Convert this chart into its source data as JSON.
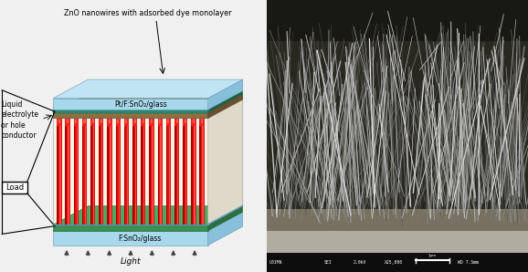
{
  "fig_width": 5.78,
  "fig_height": 2.98,
  "dpi": 100,
  "bg_color": "#f0f0f0",
  "left_panel": {
    "title": "ZnO nanowires with adsorbed dye monolayer",
    "top_label": "Pt/F:SnO₂/glass",
    "bottom_label": "F:SnO₂/glass",
    "left_labels": [
      "Liquid",
      "electrolyte",
      "or hole",
      "conductor"
    ],
    "load_label": "Load",
    "light_label": "Light",
    "colors": {
      "glass_blue": "#a8d8ec",
      "glass_blue_top": "#c0e4f4",
      "glass_blue_dark": "#88c0dc",
      "green_layer": "#3a9050",
      "green_top": "#4aaa60",
      "green_dark": "#2a7040",
      "nanowire_red": "#dd1111",
      "nanowire_highlight": "#ff4444",
      "nanowire_shadow": "#aa0000",
      "nw_bg": "#f8f2e0",
      "nw_side": "#e0d8c8",
      "nw_top_face": "#f0e8d8",
      "mid_brown": "#8b7040",
      "mid_brown_top": "#a08050",
      "liquid_blue": "#b0d8ec",
      "outer_glass_front": "#88c4dc",
      "outer_glass_top": "#a0d4e8",
      "teal_strip": "#2a8870"
    }
  },
  "right_panel": {
    "bottom_text_left": "U01MN",
    "bottom_text_mid": "SEI",
    "bottom_text_kv": "2.0kV",
    "bottom_text_mag": "X25,000",
    "bottom_text_scale": "1μm",
    "bottom_text_wd": "WD 7.5mm",
    "bg_dark": "#1a1a1a",
    "bg_mid": "#4a4a44",
    "substrate_color": "#b8b4a8",
    "wire_dark_bg": "#303030"
  }
}
